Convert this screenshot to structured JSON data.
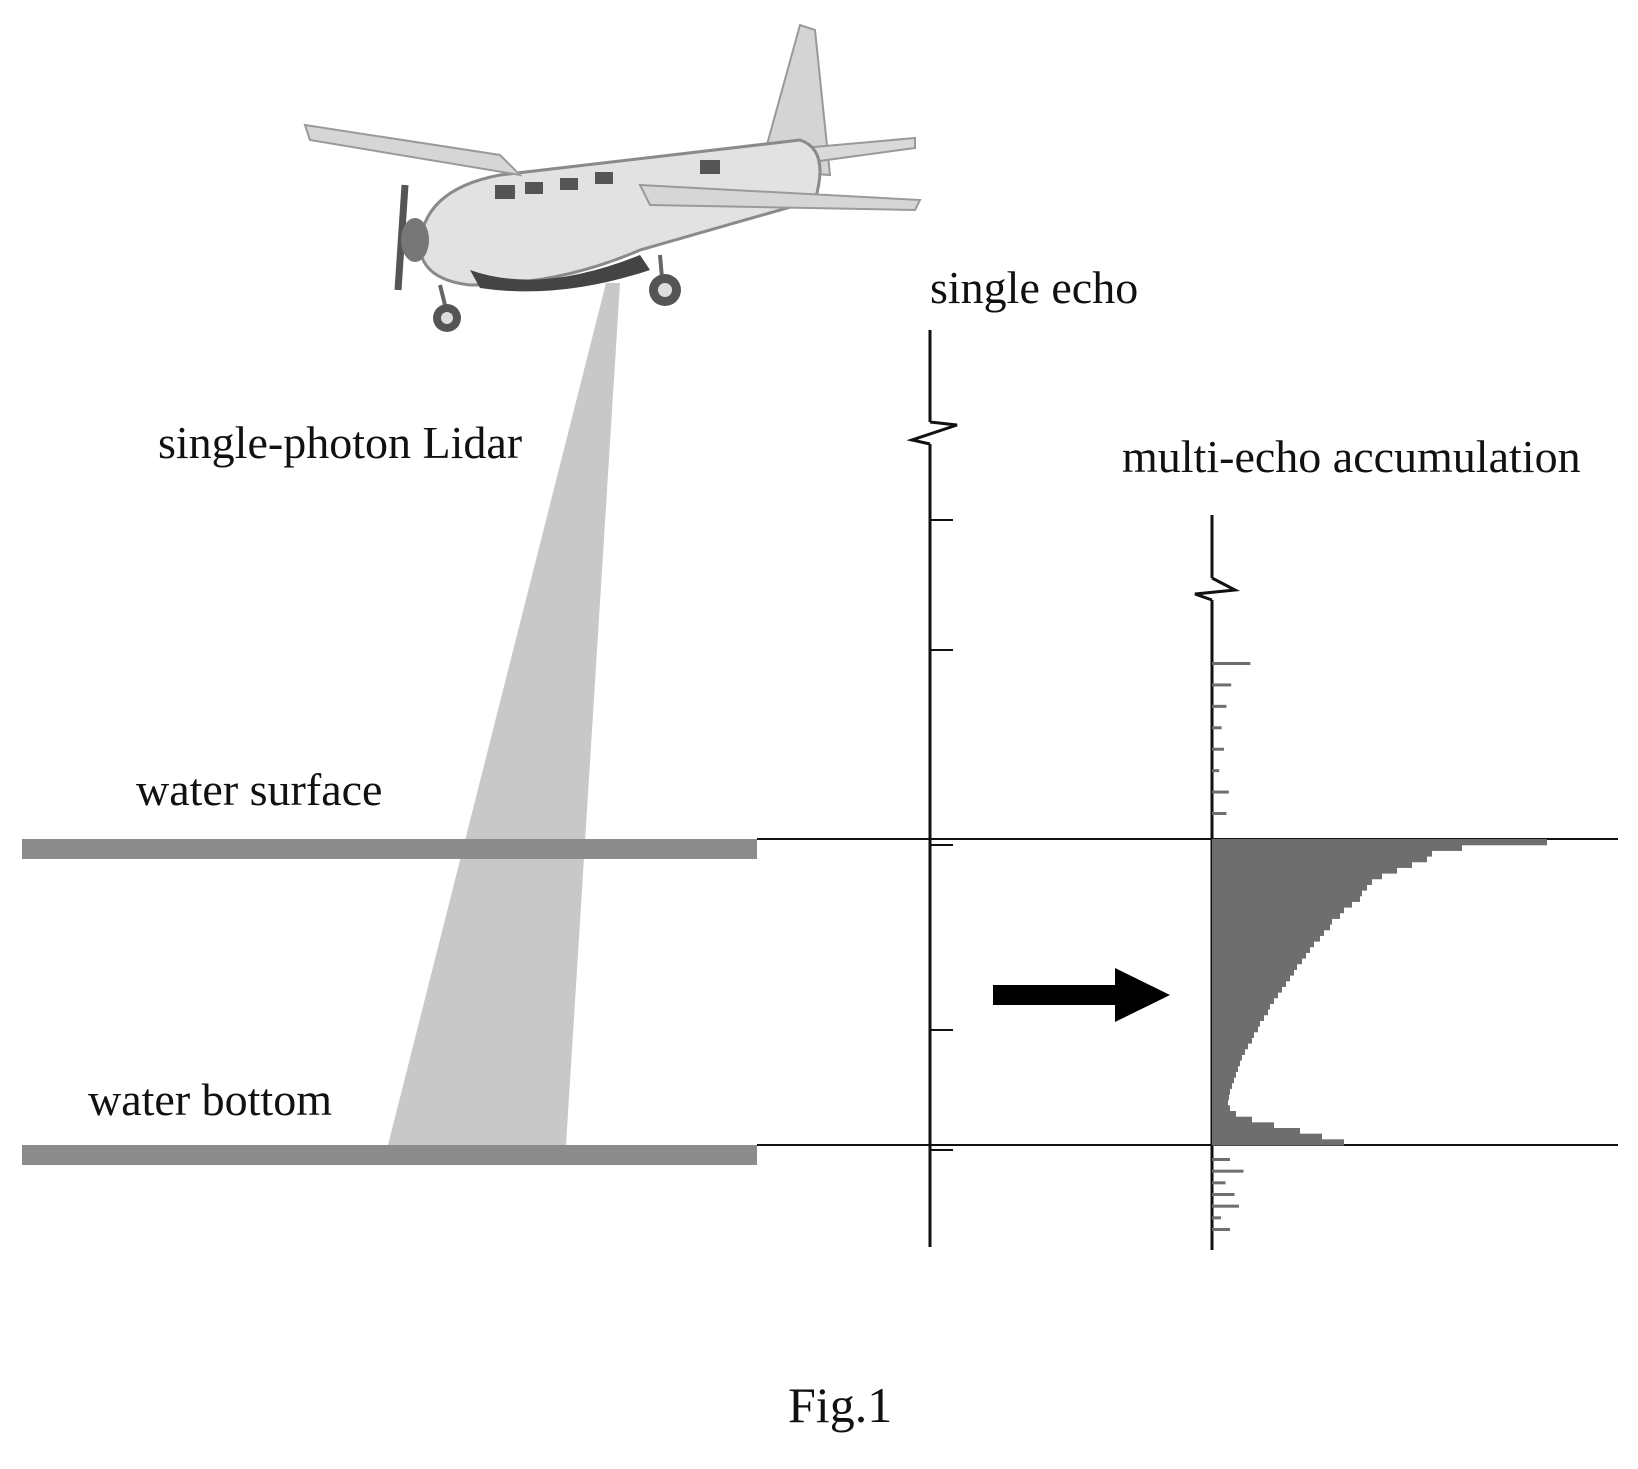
{
  "labels": {
    "lidar": "single-photon Lidar",
    "water_surface": "water surface",
    "water_bottom": "water bottom",
    "single_echo": "single echo",
    "multi_echo": "multi-echo accumulation",
    "caption": "Fig.1"
  },
  "colors": {
    "beam": "#c8c8c8",
    "layer": "#8c8c8c",
    "histogram": "#6e6e6e",
    "axis": "#111111",
    "arrow": "#000000"
  },
  "icons": {
    "aircraft": "airplane-icon",
    "arrow": "arrow-right-icon",
    "axis_break": "axis-break-icon"
  },
  "histogram": {
    "above_surface_counts": [
      16,
      8,
      6,
      4,
      5,
      3,
      7,
      6
    ],
    "between_counts": [
      335,
      250,
      220,
      215,
      200,
      185,
      170,
      160,
      155,
      150,
      148,
      140,
      132,
      128,
      120,
      118,
      112,
      108,
      102,
      98,
      94,
      90,
      85,
      82,
      78,
      74,
      70,
      66,
      62,
      58,
      56,
      52,
      48,
      46,
      42,
      40,
      36,
      33,
      30,
      28,
      26,
      24,
      22,
      20,
      18,
      17,
      16,
      18,
      24,
      40,
      62,
      88,
      110,
      132
    ],
    "below_bottom_counts": [
      4,
      7,
      3,
      5,
      6,
      2,
      4
    ]
  }
}
